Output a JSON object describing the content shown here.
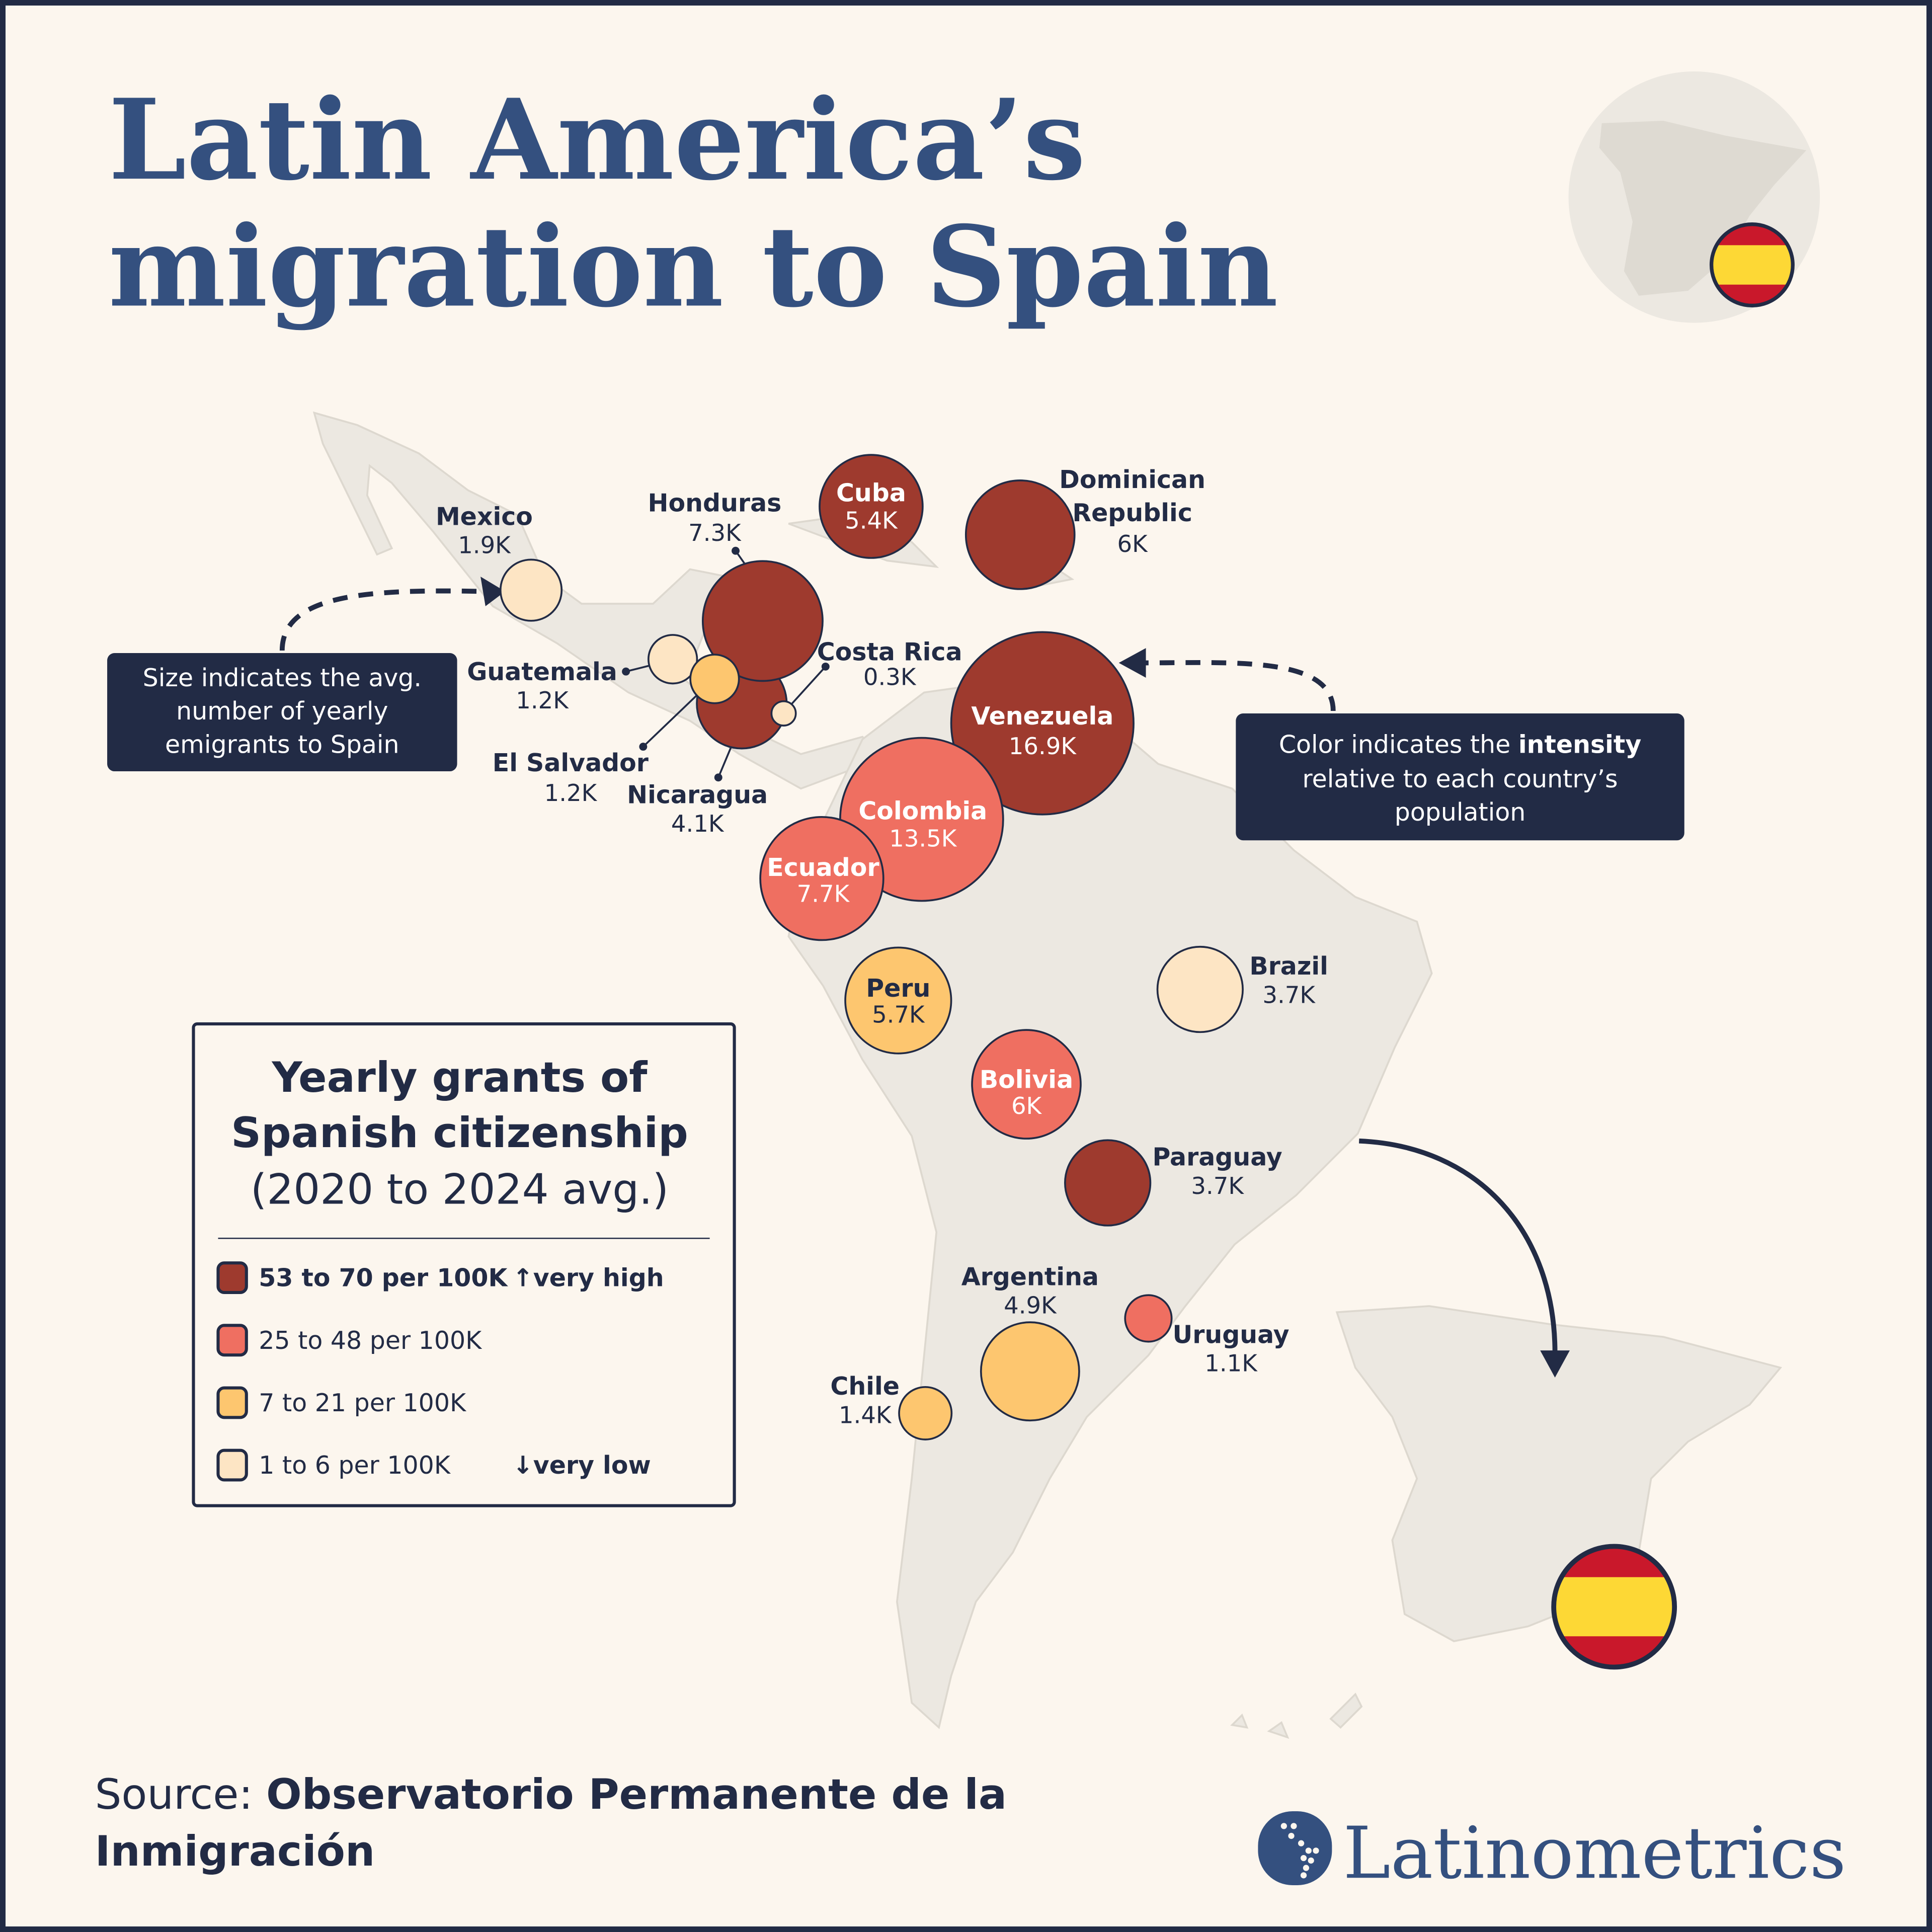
{
  "title": {
    "line1": "Latin America’s",
    "line2": "migration to Spain"
  },
  "annotations": {
    "size": [
      "Size indicates the avg.",
      "number of yearly",
      "emigrants to Spain"
    ],
    "color_pre": "Color indicates the ",
    "color_bold": "intensity",
    "color_rest": [
      "relative to each country’s",
      "population"
    ]
  },
  "legend": {
    "title": [
      "Yearly grants of",
      "Spanish citizenship",
      "(2020 to 2024 avg.)"
    ],
    "items": [
      {
        "label": "53 to 70 per 100K",
        "note": "↑very high",
        "color": "#9e3a2e"
      },
      {
        "label": "25 to 48 per 100K",
        "note": "",
        "color": "#ef6f61"
      },
      {
        "label": "7 to 21 per 100K",
        "note": "",
        "color": "#fdc66f"
      },
      {
        "label": "1 to 6 per 100K",
        "note": "↓very low",
        "color": "#fde5c4"
      }
    ]
  },
  "chart_data": {
    "type": "bubble-map",
    "size_meaning": "avg. number of yearly emigrants to Spain",
    "color_meaning": "grants per 100K population",
    "points": [
      {
        "name": "Mexico",
        "value": 1.9,
        "label": "1.9K",
        "tier": 3
      },
      {
        "name": "Nicaragua",
        "value": 4.1,
        "label": "4.1K",
        "tier": 0
      },
      {
        "name": "Honduras",
        "value": 7.3,
        "label": "7.3K",
        "tier": 0
      },
      {
        "name": "Guatemala",
        "value": 1.2,
        "label": "1.2K",
        "tier": 3
      },
      {
        "name": "El Salvador",
        "value": 1.2,
        "label": "1.2K",
        "tier": 2
      },
      {
        "name": "Costa Rica",
        "value": 0.3,
        "label": "0.3K",
        "tier": 3
      },
      {
        "name": "Cuba",
        "value": 5.4,
        "label": "5.4K",
        "tier": 0
      },
      {
        "name": "Dominican Republic",
        "value": 6,
        "label": "6K",
        "tier": 0
      },
      {
        "name": "Venezuela",
        "value": 16.9,
        "label": "16.9K",
        "tier": 0
      },
      {
        "name": "Colombia",
        "value": 13.5,
        "label": "13.5K",
        "tier": 1
      },
      {
        "name": "Ecuador",
        "value": 7.7,
        "label": "7.7K",
        "tier": 1
      },
      {
        "name": "Peru",
        "value": 5.7,
        "label": "5.7K",
        "tier": 2
      },
      {
        "name": "Brazil",
        "value": 3.7,
        "label": "3.7K",
        "tier": 3
      },
      {
        "name": "Bolivia",
        "value": 6,
        "label": "6K",
        "tier": 1
      },
      {
        "name": "Paraguay",
        "value": 3.7,
        "label": "3.7K",
        "tier": 0
      },
      {
        "name": "Argentina",
        "value": 4.9,
        "label": "4.9K",
        "tier": 2
      },
      {
        "name": "Uruguay",
        "value": 1.1,
        "label": "1.1K",
        "tier": 1
      },
      {
        "name": "Chile",
        "value": 1.4,
        "label": "1.4K",
        "tier": 2
      }
    ]
  },
  "source": {
    "prefix": "Source: ",
    "line1": "Observatorio Permanente de la",
    "line2": "Inmigración"
  },
  "brand": {
    "name": "Latinometrics"
  },
  "colors": {
    "background": "#fcf6ee",
    "navy": "#222b45",
    "title_blue": "#34507f",
    "land": "#ece8e1",
    "flag_red": "#c9182b",
    "flag_yellow": "#fdd835"
  }
}
